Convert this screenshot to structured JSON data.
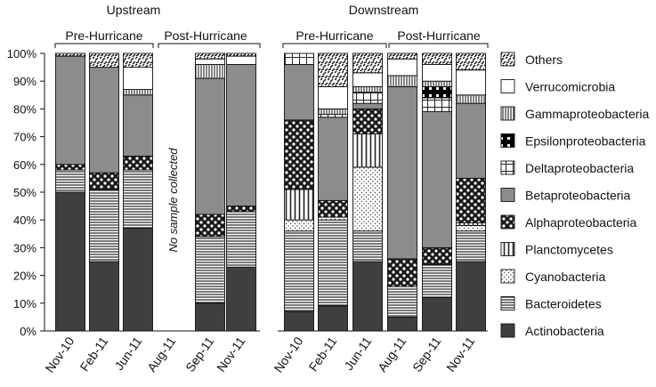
{
  "chart_data": {
    "type": "bar",
    "stacked": true,
    "y_ticks": [
      "0%",
      "10%",
      "20%",
      "30%",
      "40%",
      "50%",
      "60%",
      "70%",
      "80%",
      "90%",
      "100%"
    ],
    "ylim": [
      0,
      100
    ],
    "panels": [
      {
        "title": "Upstream",
        "groups": [
          {
            "label": "Pre-Hurricane",
            "categories": [
              "Nov-10",
              "Feb-11",
              "Jun-11"
            ]
          },
          {
            "label": "Post-Hurricane",
            "categories": [
              "Aug-11",
              "Sep-11",
              "Nov-11"
            ]
          }
        ],
        "annotation": "No sample collected"
      },
      {
        "title": "Downstream",
        "groups": [
          {
            "label": "Pre-Hurricane",
            "categories": [
              "Nov-10",
              "Feb-11",
              "Jun-11"
            ]
          },
          {
            "label": "Post-Hurricane",
            "categories": [
              "Aug-11",
              "Sep-11",
              "Nov-11"
            ]
          }
        ]
      }
    ],
    "categories": [
      "Nov-10",
      "Feb-11",
      "Jun-11",
      "Aug-11",
      "Sep-11",
      "Nov-11",
      "Nov-10",
      "Feb-11",
      "Jun-11",
      "Aug-11",
      "Sep-11",
      "Nov-11"
    ],
    "legend": [
      "Others",
      "Verrucomicrobia",
      "Gammaproteobacteria",
      "Epsilonproteobacteria",
      "Deltaproteobacteria",
      "Betaproteobacteria",
      "Alphaproteobacteria",
      "Planctomycetes",
      "Cyanobacteria",
      "Bacteroidetes",
      "Actinobacteria"
    ],
    "legend_position": "right",
    "series": [
      {
        "name": "Actinobacteria",
        "pattern": "solid-dark",
        "values": [
          50,
          25,
          37,
          null,
          10,
          23,
          7,
          9,
          25,
          5,
          12,
          25
        ]
      },
      {
        "name": "Bacteroidetes",
        "pattern": "horizontal-lines",
        "values": [
          8,
          26,
          21,
          null,
          24,
          20,
          29,
          31,
          11,
          11,
          12,
          11
        ]
      },
      {
        "name": "Cyanobacteria",
        "pattern": "dots",
        "values": [
          0,
          0,
          0,
          null,
          0,
          0,
          4,
          1,
          23,
          0,
          0,
          2
        ]
      },
      {
        "name": "Planctomycetes",
        "pattern": "vertical-lines",
        "values": [
          0,
          0,
          0,
          null,
          0,
          0,
          11,
          0,
          12,
          0,
          0,
          1
        ]
      },
      {
        "name": "Alphaproteobacteria",
        "pattern": "polka-dark",
        "values": [
          2,
          6,
          5,
          null,
          8,
          2,
          25,
          6,
          9,
          10,
          6,
          16
        ]
      },
      {
        "name": "Betaproteobacteria",
        "pattern": "solid-gray",
        "values": [
          39,
          38,
          22,
          null,
          49,
          51,
          20,
          30,
          2,
          62,
          49,
          27
        ]
      },
      {
        "name": "Deltaproteobacteria",
        "pattern": "grid",
        "values": [
          0,
          0,
          0,
          null,
          0,
          0,
          4,
          1,
          4,
          0,
          5,
          0
        ]
      },
      {
        "name": "Epsilonproteobacteria",
        "pattern": "checker",
        "values": [
          0,
          0,
          0,
          null,
          0,
          0,
          0,
          0,
          0,
          0,
          4,
          0
        ]
      },
      {
        "name": "Gammaproteobacteria",
        "pattern": "vertical-lines-dense",
        "values": [
          0,
          0,
          2,
          null,
          5,
          0,
          0,
          2,
          2,
          4,
          2,
          3
        ]
      },
      {
        "name": "Verrucomicrobia",
        "pattern": "white",
        "values": [
          0,
          0,
          8,
          null,
          2,
          3,
          0,
          8,
          5,
          6,
          6,
          9
        ]
      },
      {
        "name": "Others",
        "pattern": "wavy",
        "values": [
          1,
          5,
          5,
          null,
          2,
          1,
          0,
          12,
          7,
          2,
          4,
          6
        ]
      }
    ]
  }
}
